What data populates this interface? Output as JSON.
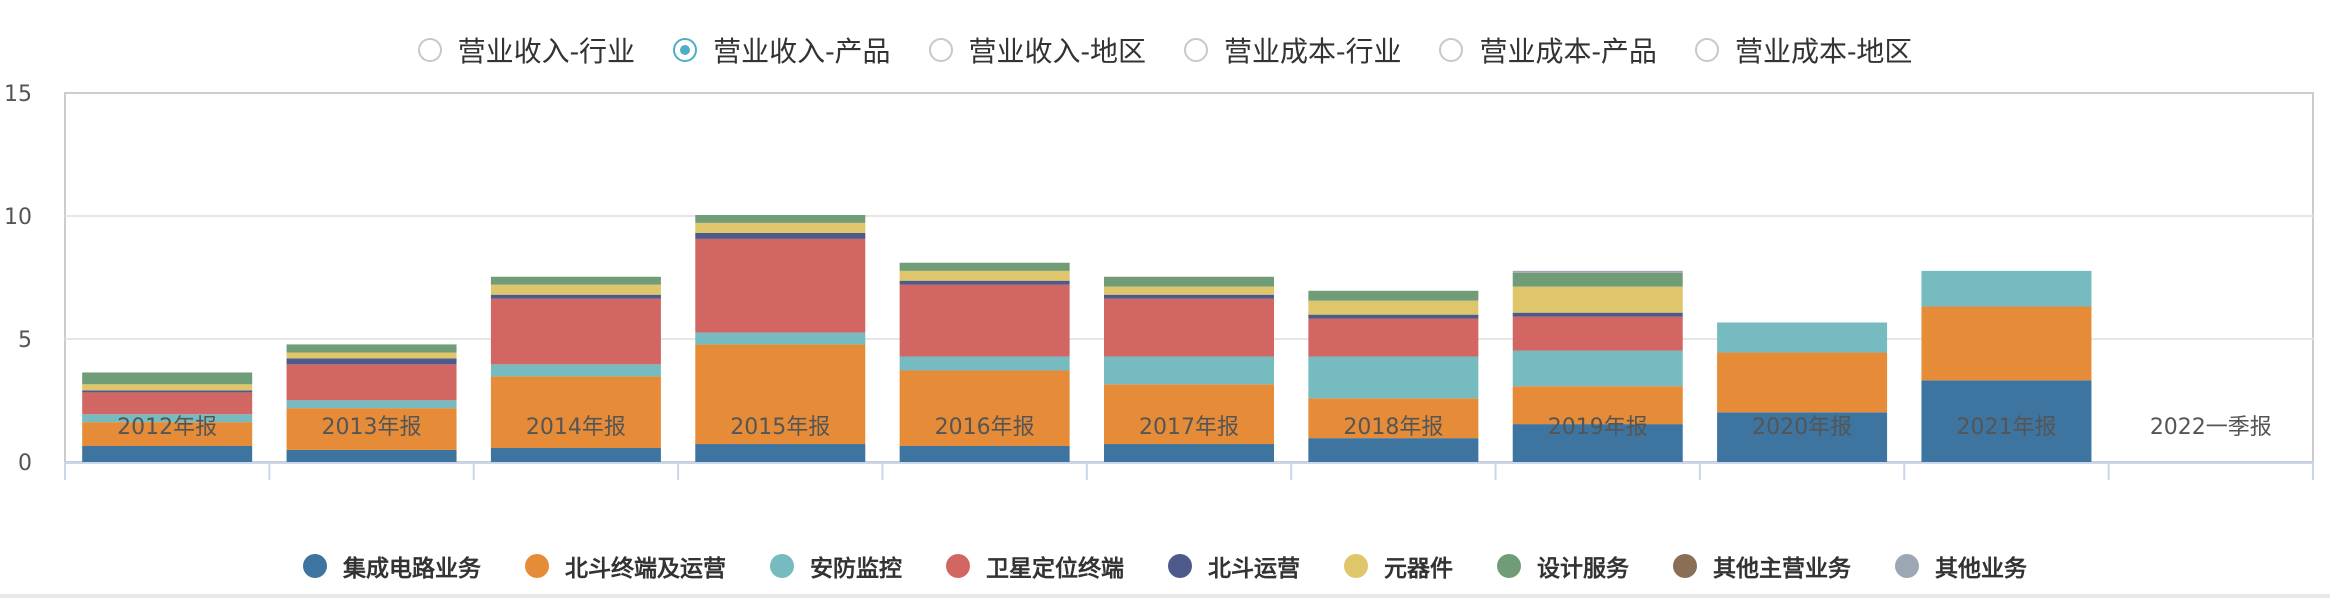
{
  "radio_tabs": [
    {
      "label": "营业收入-行业",
      "selected": false
    },
    {
      "label": "营业收入-产品",
      "selected": true
    },
    {
      "label": "营业收入-地区",
      "selected": false
    },
    {
      "label": "营业成本-行业",
      "selected": false
    },
    {
      "label": "营业成本-产品",
      "selected": false
    },
    {
      "label": "营业成本-地区",
      "selected": false
    }
  ],
  "colors": {
    "accent": "#4fadc7",
    "grid": "#e6e6e6",
    "axis": "#ccd6eb",
    "frame": "#cccccc"
  },
  "chart_data": {
    "type": "bar",
    "stacked": true,
    "title": "",
    "xlabel": "",
    "ylabel": "",
    "ylim": [
      0,
      15
    ],
    "yticks": [
      0,
      5,
      10,
      15
    ],
    "grid": true,
    "legend_position": "bottom",
    "categories": [
      "2012年报",
      "2013年报",
      "2014年报",
      "2015年报",
      "2016年报",
      "2017年报",
      "2018年报",
      "2019年报",
      "2020年报",
      "2021年报",
      "2022一季报"
    ],
    "series": [
      {
        "name": "集成电路业务",
        "color": "#3d74a0",
        "values": [
          0.65,
          0.49,
          0.57,
          0.73,
          0.65,
          0.73,
          0.97,
          1.54,
          2.02,
          3.32,
          0
        ]
      },
      {
        "name": "北斗终端及运营",
        "color": "#e68c38",
        "values": [
          0.97,
          1.7,
          2.91,
          4.05,
          3.07,
          2.43,
          1.62,
          1.54,
          2.43,
          3.0,
          0
        ]
      },
      {
        "name": "安防监控",
        "color": "#76bbbf",
        "values": [
          0.32,
          0.32,
          0.49,
          0.48,
          0.57,
          1.13,
          1.7,
          1.45,
          1.22,
          1.45,
          0
        ]
      },
      {
        "name": "卫星定位终端",
        "color": "#d16662",
        "values": [
          0.89,
          1.46,
          2.67,
          3.81,
          2.92,
          2.35,
          1.54,
          1.38,
          0,
          0,
          0
        ]
      },
      {
        "name": "北斗运营",
        "color": "#4c5a8c",
        "values": [
          0.08,
          0.24,
          0.16,
          0.24,
          0.16,
          0.16,
          0.16,
          0.16,
          0,
          0,
          0
        ]
      },
      {
        "name": "元器件",
        "color": "#dfc66a",
        "values": [
          0.25,
          0.24,
          0.41,
          0.41,
          0.4,
          0.33,
          0.57,
          1.06,
          0,
          0,
          0
        ]
      },
      {
        "name": "设计服务",
        "color": "#709d77",
        "values": [
          0.48,
          0.33,
          0.32,
          0.32,
          0.33,
          0.4,
          0.4,
          0.56,
          0,
          0,
          0
        ]
      },
      {
        "name": "其他主营业务",
        "color": "#8a6e55",
        "values": [
          0,
          0,
          0,
          0,
          0,
          0,
          0,
          0,
          0,
          0,
          0
        ]
      },
      {
        "name": "其他业务",
        "color": "#9da7b4",
        "values": [
          0,
          0,
          0,
          0,
          0,
          0,
          0,
          0.08,
          0,
          0,
          0
        ]
      }
    ]
  }
}
